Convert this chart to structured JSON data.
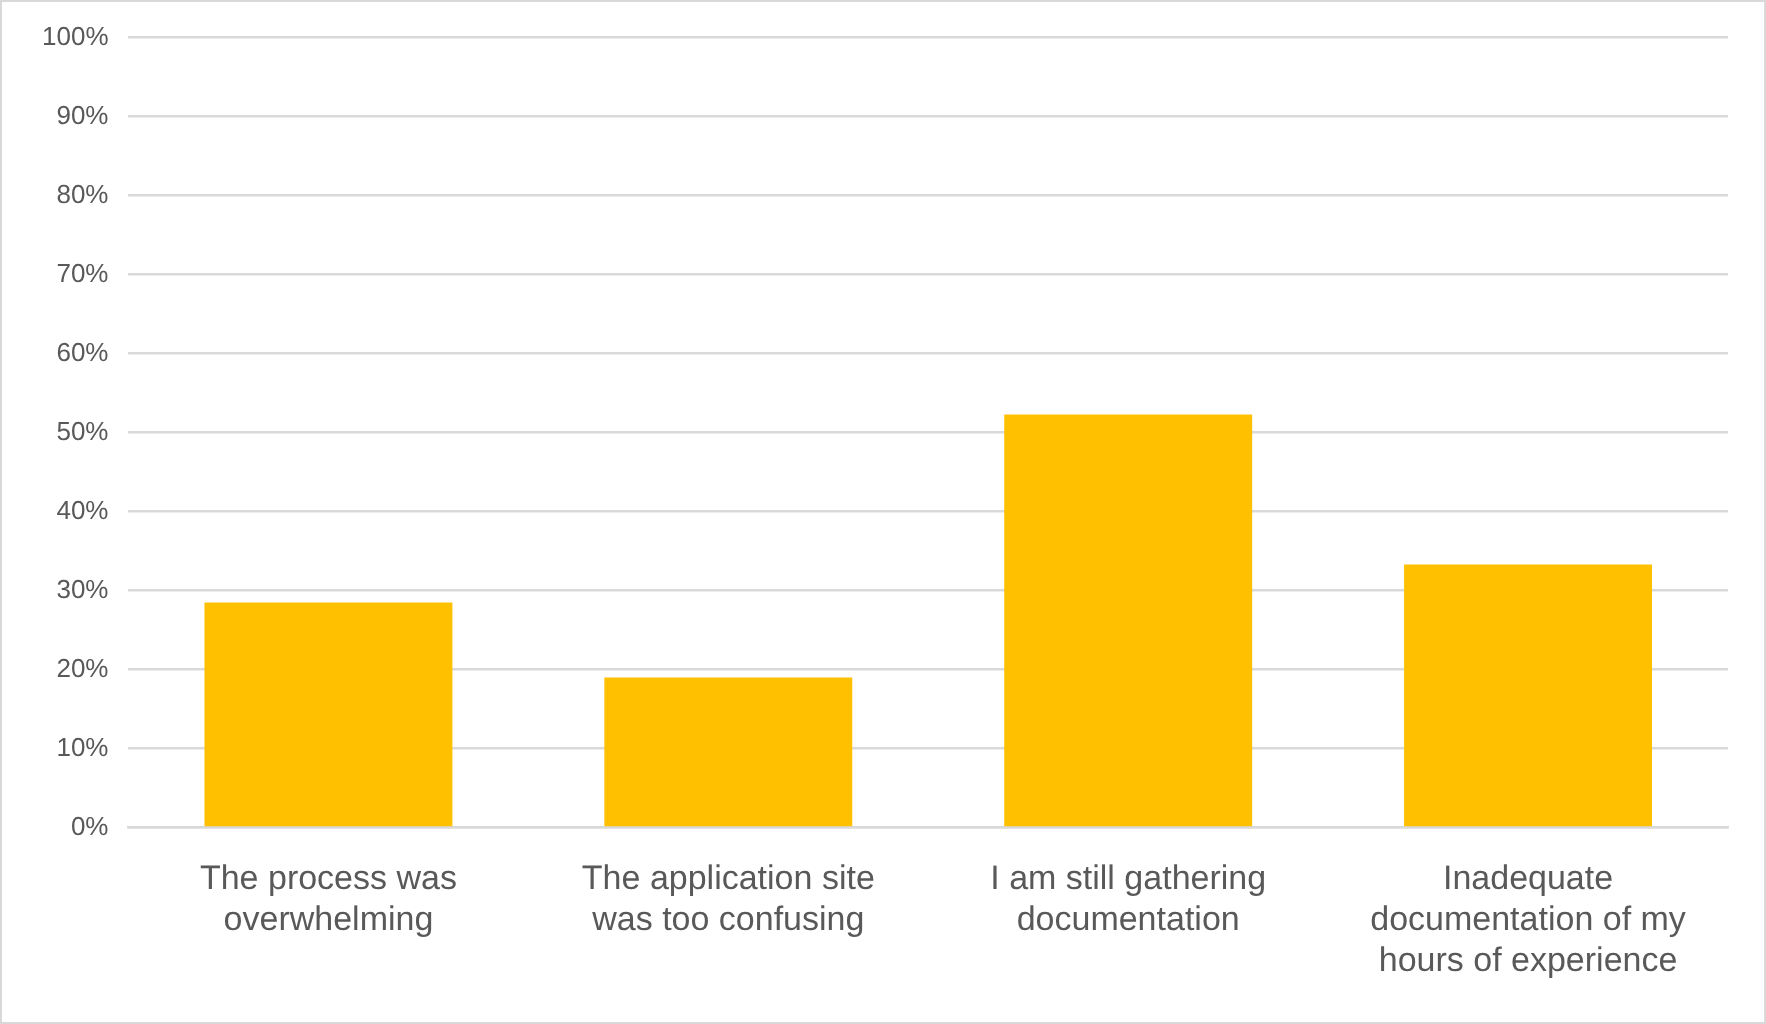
{
  "chart_data": {
    "type": "bar",
    "categories": [
      "The process was overwhelming",
      "The application site was too confusing",
      "I am still gathering documentation",
      "Inadequate documentation of my hours of experience"
    ],
    "values": [
      28.5,
      19,
      52.3,
      33.3
    ],
    "color": "#ffc000",
    "ylim": [
      0,
      100
    ],
    "yticks": [
      {
        "value": 0,
        "label": "0%"
      },
      {
        "value": 10,
        "label": "10%"
      },
      {
        "value": 20,
        "label": "20%"
      },
      {
        "value": 30,
        "label": "30%"
      },
      {
        "value": 40,
        "label": "40%"
      },
      {
        "value": 50,
        "label": "50%"
      },
      {
        "value": 60,
        "label": "60%"
      },
      {
        "value": 70,
        "label": "70%"
      },
      {
        "value": 80,
        "label": "80%"
      },
      {
        "value": 90,
        "label": "90%"
      },
      {
        "value": 100,
        "label": "100%"
      }
    ],
    "grid": "y",
    "legend": false
  }
}
